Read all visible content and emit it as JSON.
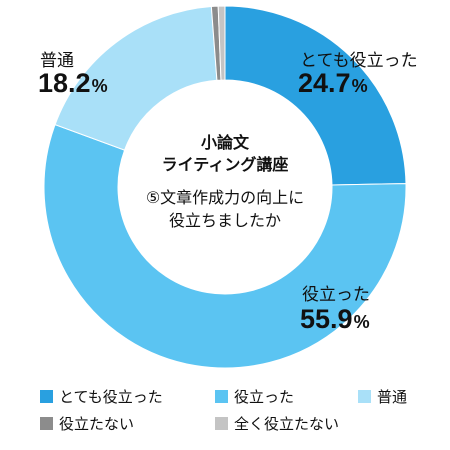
{
  "chart_data": {
    "type": "donut",
    "center_text": {
      "title_line1": "小論文",
      "title_line2": "ライティング講座",
      "question_line1": "⑤文章作成力の向上に",
      "question_line2": "役立ちましたか"
    },
    "slices": [
      {
        "label": "とても役立った",
        "value": 24.7,
        "color": "#29a0e0"
      },
      {
        "label": "役立った",
        "value": 55.9,
        "color": "#5bc4f2"
      },
      {
        "label": "普通",
        "value": 18.2,
        "color": "#a9e0f8"
      },
      {
        "label": "役立たない",
        "value": 0.6,
        "color": "#8c8c8c"
      },
      {
        "label": "全く役立たない",
        "value": 0.6,
        "color": "#c4c4c4"
      }
    ],
    "value_suffix": "%",
    "legend_placement": "bottom"
  }
}
